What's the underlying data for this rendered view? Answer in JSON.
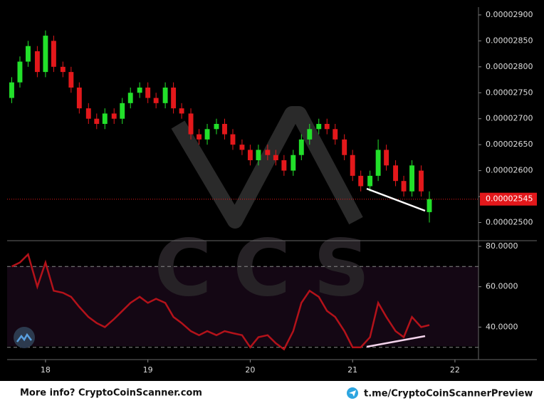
{
  "chart_data": {
    "type": "candlestick",
    "x": [
      17.67,
      17.75,
      17.83,
      17.92,
      18.0,
      18.08,
      18.17,
      18.25,
      18.33,
      18.42,
      18.5,
      18.58,
      18.67,
      18.75,
      18.83,
      18.92,
      19.0,
      19.08,
      19.17,
      19.25,
      19.33,
      19.42,
      19.5,
      19.58,
      19.67,
      19.75,
      19.83,
      19.92,
      20.0,
      20.08,
      20.17,
      20.25,
      20.33,
      20.42,
      20.5,
      20.58,
      20.67,
      20.75,
      20.83,
      20.92,
      21.0,
      21.08,
      21.17,
      21.25,
      21.33,
      21.42,
      21.5,
      21.58,
      21.67,
      21.75
    ],
    "open": [
      2.74e-05,
      2.77e-05,
      2.81e-05,
      2.83e-05,
      2.79e-05,
      2.85e-05,
      2.8e-05,
      2.79e-05,
      2.76e-05,
      2.72e-05,
      2.7e-05,
      2.69e-05,
      2.71e-05,
      2.7e-05,
      2.73e-05,
      2.75e-05,
      2.76e-05,
      2.74e-05,
      2.73e-05,
      2.76e-05,
      2.72e-05,
      2.71e-05,
      2.67e-05,
      2.66e-05,
      2.68e-05,
      2.69e-05,
      2.67e-05,
      2.65e-05,
      2.64e-05,
      2.62e-05,
      2.64e-05,
      2.63e-05,
      2.62e-05,
      2.6e-05,
      2.63e-05,
      2.66e-05,
      2.68e-05,
      2.69e-05,
      2.68e-05,
      2.66e-05,
      2.63e-05,
      2.59e-05,
      2.57e-05,
      2.59e-05,
      2.64e-05,
      2.61e-05,
      2.58e-05,
      2.56e-05,
      2.6e-05,
      2.52e-05
    ],
    "high": [
      2.78e-05,
      2.82e-05,
      2.85e-05,
      2.84e-05,
      2.87e-05,
      2.86e-05,
      2.81e-05,
      2.8e-05,
      2.77e-05,
      2.73e-05,
      2.71e-05,
      2.72e-05,
      2.72e-05,
      2.74e-05,
      2.76e-05,
      2.77e-05,
      2.77e-05,
      2.75e-05,
      2.77e-05,
      2.77e-05,
      2.73e-05,
      2.72e-05,
      2.68e-05,
      2.69e-05,
      2.7e-05,
      2.7e-05,
      2.68e-05,
      2.66e-05,
      2.65e-05,
      2.65e-05,
      2.65e-05,
      2.64e-05,
      2.63e-05,
      2.64e-05,
      2.67e-05,
      2.69e-05,
      2.7e-05,
      2.7e-05,
      2.69e-05,
      2.67e-05,
      2.64e-05,
      2.6e-05,
      2.6e-05,
      2.66e-05,
      2.65e-05,
      2.62e-05,
      2.59e-05,
      2.62e-05,
      2.61e-05,
      2.56e-05
    ],
    "low": [
      2.73e-05,
      2.76e-05,
      2.8e-05,
      2.78e-05,
      2.78e-05,
      2.79e-05,
      2.78e-05,
      2.75e-05,
      2.71e-05,
      2.69e-05,
      2.68e-05,
      2.68e-05,
      2.69e-05,
      2.69e-05,
      2.72e-05,
      2.74e-05,
      2.73e-05,
      2.72e-05,
      2.72e-05,
      2.71e-05,
      2.7e-05,
      2.66e-05,
      2.65e-05,
      2.65e-05,
      2.67e-05,
      2.66e-05,
      2.64e-05,
      2.63e-05,
      2.61e-05,
      2.61e-05,
      2.62e-05,
      2.61e-05,
      2.59e-05,
      2.59e-05,
      2.62e-05,
      2.65e-05,
      2.67e-05,
      2.67e-05,
      2.65e-05,
      2.62e-05,
      2.58e-05,
      2.56e-05,
      2.56e-05,
      2.58e-05,
      2.6e-05,
      2.57e-05,
      2.55e-05,
      2.55e-05,
      2.55e-05,
      2.5e-05
    ],
    "close": [
      2.77e-05,
      2.81e-05,
      2.84e-05,
      2.79e-05,
      2.86e-05,
      2.8e-05,
      2.79e-05,
      2.76e-05,
      2.72e-05,
      2.7e-05,
      2.69e-05,
      2.71e-05,
      2.7e-05,
      2.73e-05,
      2.75e-05,
      2.76e-05,
      2.74e-05,
      2.73e-05,
      2.76e-05,
      2.72e-05,
      2.71e-05,
      2.67e-05,
      2.66e-05,
      2.68e-05,
      2.69e-05,
      2.67e-05,
      2.65e-05,
      2.64e-05,
      2.62e-05,
      2.64e-05,
      2.63e-05,
      2.62e-05,
      2.6e-05,
      2.63e-05,
      2.66e-05,
      2.68e-05,
      2.69e-05,
      2.68e-05,
      2.66e-05,
      2.63e-05,
      2.59e-05,
      2.57e-05,
      2.59e-05,
      2.64e-05,
      2.61e-05,
      2.58e-05,
      2.56e-05,
      2.61e-05,
      2.56e-05,
      2.545e-05
    ],
    "up_color": "#22e02a",
    "down_color": "#e3181b",
    "xlim": [
      17.625,
      22.23
    ],
    "xticks": [
      18,
      19,
      20,
      21,
      22
    ],
    "ylim": [
      2.465e-05,
      2.915e-05
    ],
    "yticks": [
      {
        "value": 2.5e-05,
        "label": "0.00002500"
      },
      {
        "value": 2.55e-05,
        "label": "0.00002550"
      },
      {
        "value": 2.6e-05,
        "label": "0.00002600"
      },
      {
        "value": 2.65e-05,
        "label": "0.00002650"
      },
      {
        "value": 2.7e-05,
        "label": "0.00002700"
      },
      {
        "value": 2.75e-05,
        "label": "0.00002750"
      },
      {
        "value": 2.8e-05,
        "label": "0.00002800"
      },
      {
        "value": 2.85e-05,
        "label": "0.00002850"
      },
      {
        "value": 2.9e-05,
        "label": "0.00002900"
      }
    ],
    "last_price": {
      "value": 2.545e-05,
      "label": "0.00002545"
    },
    "rsi": {
      "values": [
        70,
        72,
        76,
        60,
        72,
        58,
        57,
        55,
        50,
        45,
        42,
        40,
        44,
        48,
        52,
        55,
        52,
        54,
        52,
        45,
        42,
        38,
        36,
        38,
        36,
        38,
        37,
        36,
        30,
        35,
        36,
        32,
        29,
        38,
        52,
        58,
        55,
        48,
        45,
        38,
        30,
        30,
        35,
        52,
        45,
        38,
        35,
        45,
        40,
        41
      ],
      "color": "#b3121a",
      "ylim": [
        23.9,
        82.1
      ],
      "yticks": [
        {
          "value": 40,
          "label": "40.0000"
        },
        {
          "value": 60,
          "label": "60.0000"
        },
        {
          "value": 80,
          "label": "80.0000"
        }
      ],
      "bands": [
        30,
        70
      ]
    },
    "watermark": "CCS",
    "footer_left": "More info? CryptoCoinScanner.com",
    "footer_right": "t.me/CryptoCoinScannerPreview"
  }
}
